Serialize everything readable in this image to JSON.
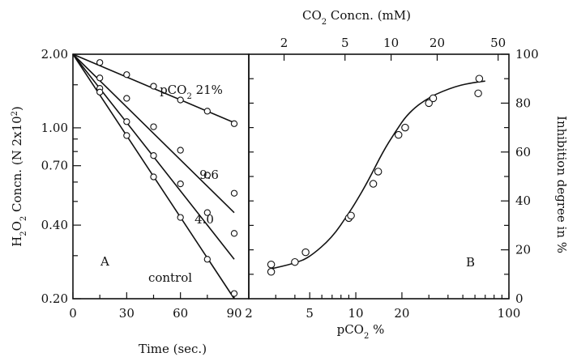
{
  "chart_data": [
    {
      "panel": "A",
      "type": "scatter",
      "xlabel": "Time (sec.)",
      "ylabel": "H2O2 Concn. (N 2x10²)",
      "ylabel_text": {
        "main": "H",
        "sub1": "2",
        "mid": "O",
        "sub2": "2",
        "rest": " Concn. (N 2x10",
        "sup": "2",
        "end": ")"
      },
      "y_scale": "log",
      "xlim": [
        0,
        90
      ],
      "ylim": [
        0.2,
        2.0
      ],
      "x_ticks": [
        0,
        30,
        60,
        90
      ],
      "x_tick_labels": [
        "0",
        "30",
        "60",
        "90"
      ],
      "y_ticks": [
        0.2,
        0.4,
        0.7,
        1.0,
        2.0
      ],
      "y_tick_labels": [
        "0.20",
        "0.40",
        "0.70",
        "1.00",
        "2.00"
      ],
      "series": [
        {
          "name": "pCO2 21%",
          "label": {
            "prefix": "pCO",
            "sub": "2",
            "suffix": " 21%"
          },
          "fit": [
            [
              0,
              2.0
            ],
            [
              90,
              1.05
            ]
          ],
          "points": [
            [
              15,
              1.85
            ],
            [
              30,
              1.65
            ],
            [
              45,
              1.48
            ],
            [
              60,
              1.3
            ],
            [
              75,
              1.17
            ],
            [
              90,
              1.04
            ]
          ]
        },
        {
          "name": "9.6",
          "label": {
            "prefix": "9.6",
            "sub": "",
            "suffix": ""
          },
          "fit": [
            [
              0,
              2.0
            ],
            [
              90,
              0.45
            ]
          ],
          "points": [
            [
              15,
              1.6
            ],
            [
              30,
              1.32
            ],
            [
              45,
              1.01
            ],
            [
              60,
              0.81
            ],
            [
              75,
              0.64
            ],
            [
              90,
              0.54
            ]
          ]
        },
        {
          "name": "4.0",
          "label": {
            "prefix": "4.0",
            "sub": "",
            "suffix": ""
          },
          "fit": [
            [
              0,
              2.0
            ],
            [
              90,
              0.29
            ]
          ],
          "points": [
            [
              15,
              1.45
            ],
            [
              30,
              1.06
            ],
            [
              45,
              0.77
            ],
            [
              60,
              0.59
            ],
            [
              75,
              0.45
            ],
            [
              90,
              0.37
            ]
          ]
        },
        {
          "name": "control",
          "label": {
            "prefix": "control",
            "sub": "",
            "suffix": ""
          },
          "fit": [
            [
              0,
              2.0
            ],
            [
              90,
              0.2
            ]
          ],
          "points": [
            [
              15,
              1.4
            ],
            [
              30,
              0.93
            ],
            [
              45,
              0.63
            ],
            [
              60,
              0.43
            ],
            [
              75,
              0.29
            ],
            [
              90,
              0.21
            ]
          ]
        }
      ]
    },
    {
      "panel": "B",
      "type": "scatter",
      "xlabel": "pCO2 %",
      "xlabel_text": {
        "prefix": "pCO",
        "sub": "2",
        "suffix": "%"
      },
      "x2label": "CO2 Concn. (mM)",
      "x2label_text": {
        "prefix": "CO",
        "sub": "2",
        "suffix": "Concn.",
        "unit": "(mM)"
      },
      "ylabel": "Inhibition degree in %",
      "x_scale": "log",
      "xlim": [
        2,
        100
      ],
      "ylim": [
        0,
        100
      ],
      "x_ticks": [
        2,
        5,
        10,
        20,
        100
      ],
      "x_tick_labels": [
        "2",
        "5",
        "10",
        "20",
        "100"
      ],
      "x2_ticks": [
        2,
        5,
        10,
        20,
        50
      ],
      "x2_tick_labels": [
        "2",
        "5",
        "10",
        "20",
        "50"
      ],
      "y_ticks": [
        0,
        20,
        40,
        60,
        80,
        100
      ],
      "y_tick_labels": [
        "0",
        "20",
        "40",
        "60",
        "80",
        "100"
      ],
      "fit_curve": [
        [
          2.7,
          12
        ],
        [
          4,
          14.5
        ],
        [
          5,
          17
        ],
        [
          7,
          25
        ],
        [
          9,
          35
        ],
        [
          10,
          39.5
        ],
        [
          12,
          48
        ],
        [
          15,
          60
        ],
        [
          18,
          68
        ],
        [
          22,
          76
        ],
        [
          30,
          82.5
        ],
        [
          45,
          87
        ],
        [
          60,
          88.5
        ],
        [
          70,
          89
        ]
      ],
      "points": [
        [
          2.8,
          11
        ],
        [
          2.8,
          14
        ],
        [
          4,
          15
        ],
        [
          4.7,
          19
        ],
        [
          9,
          33
        ],
        [
          9.3,
          34
        ],
        [
          13,
          47
        ],
        [
          14,
          52
        ],
        [
          19,
          67
        ],
        [
          21,
          70
        ],
        [
          30,
          80
        ],
        [
          32,
          82
        ],
        [
          63,
          84
        ],
        [
          64,
          90
        ]
      ]
    }
  ],
  "panel_labels": {
    "A": "A",
    "B": "B"
  }
}
